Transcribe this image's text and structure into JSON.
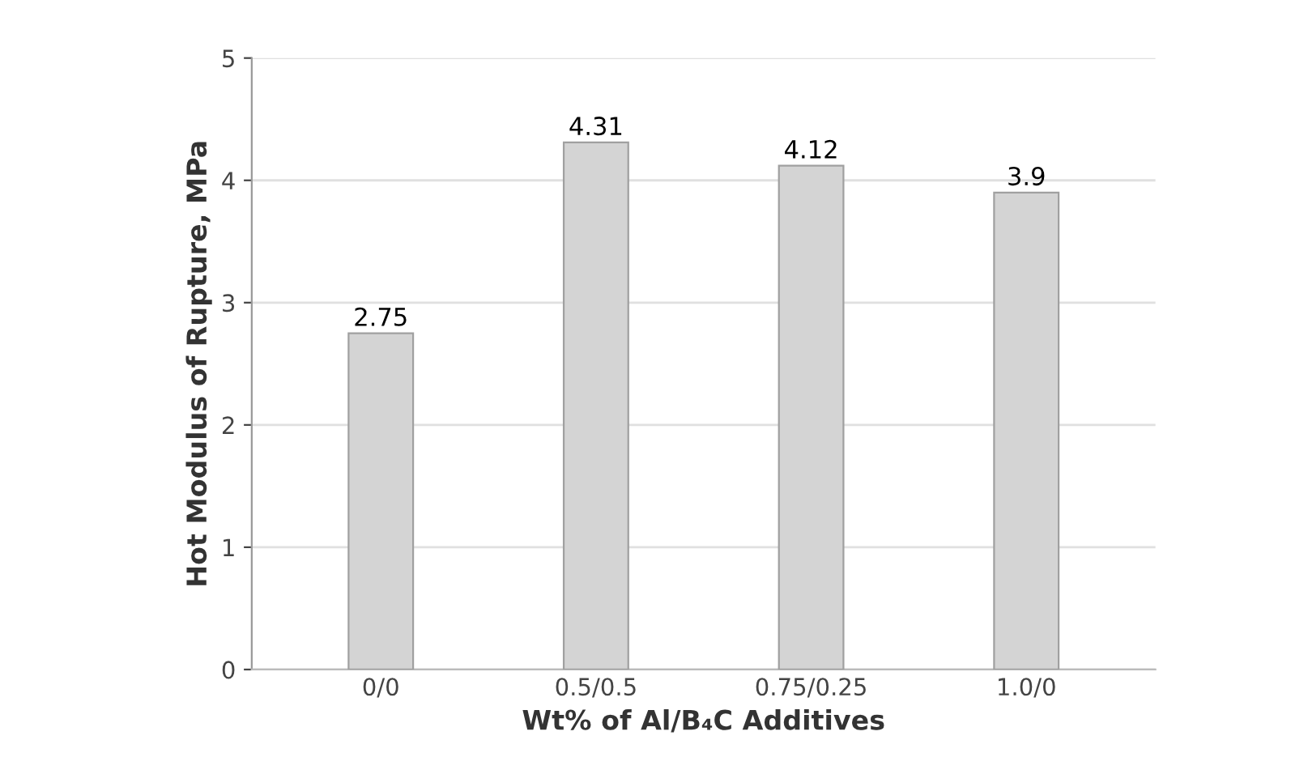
{
  "chart_data": {
    "type": "bar",
    "xlabel": "Wt% of Al/B₄C Additives",
    "ylabel": "Hot Modulus of Rupture, MPa",
    "categories": [
      "0/0",
      "0.5/0.5",
      "0.75/0.25",
      "1.0/0"
    ],
    "values": [
      2.75,
      4.31,
      4.12,
      3.9
    ],
    "color": "#d4d4d4",
    "ylim": [
      0,
      5
    ],
    "yticks": [
      0,
      1,
      2,
      3,
      4,
      5
    ],
    "grid": "y",
    "data_labels": true
  }
}
